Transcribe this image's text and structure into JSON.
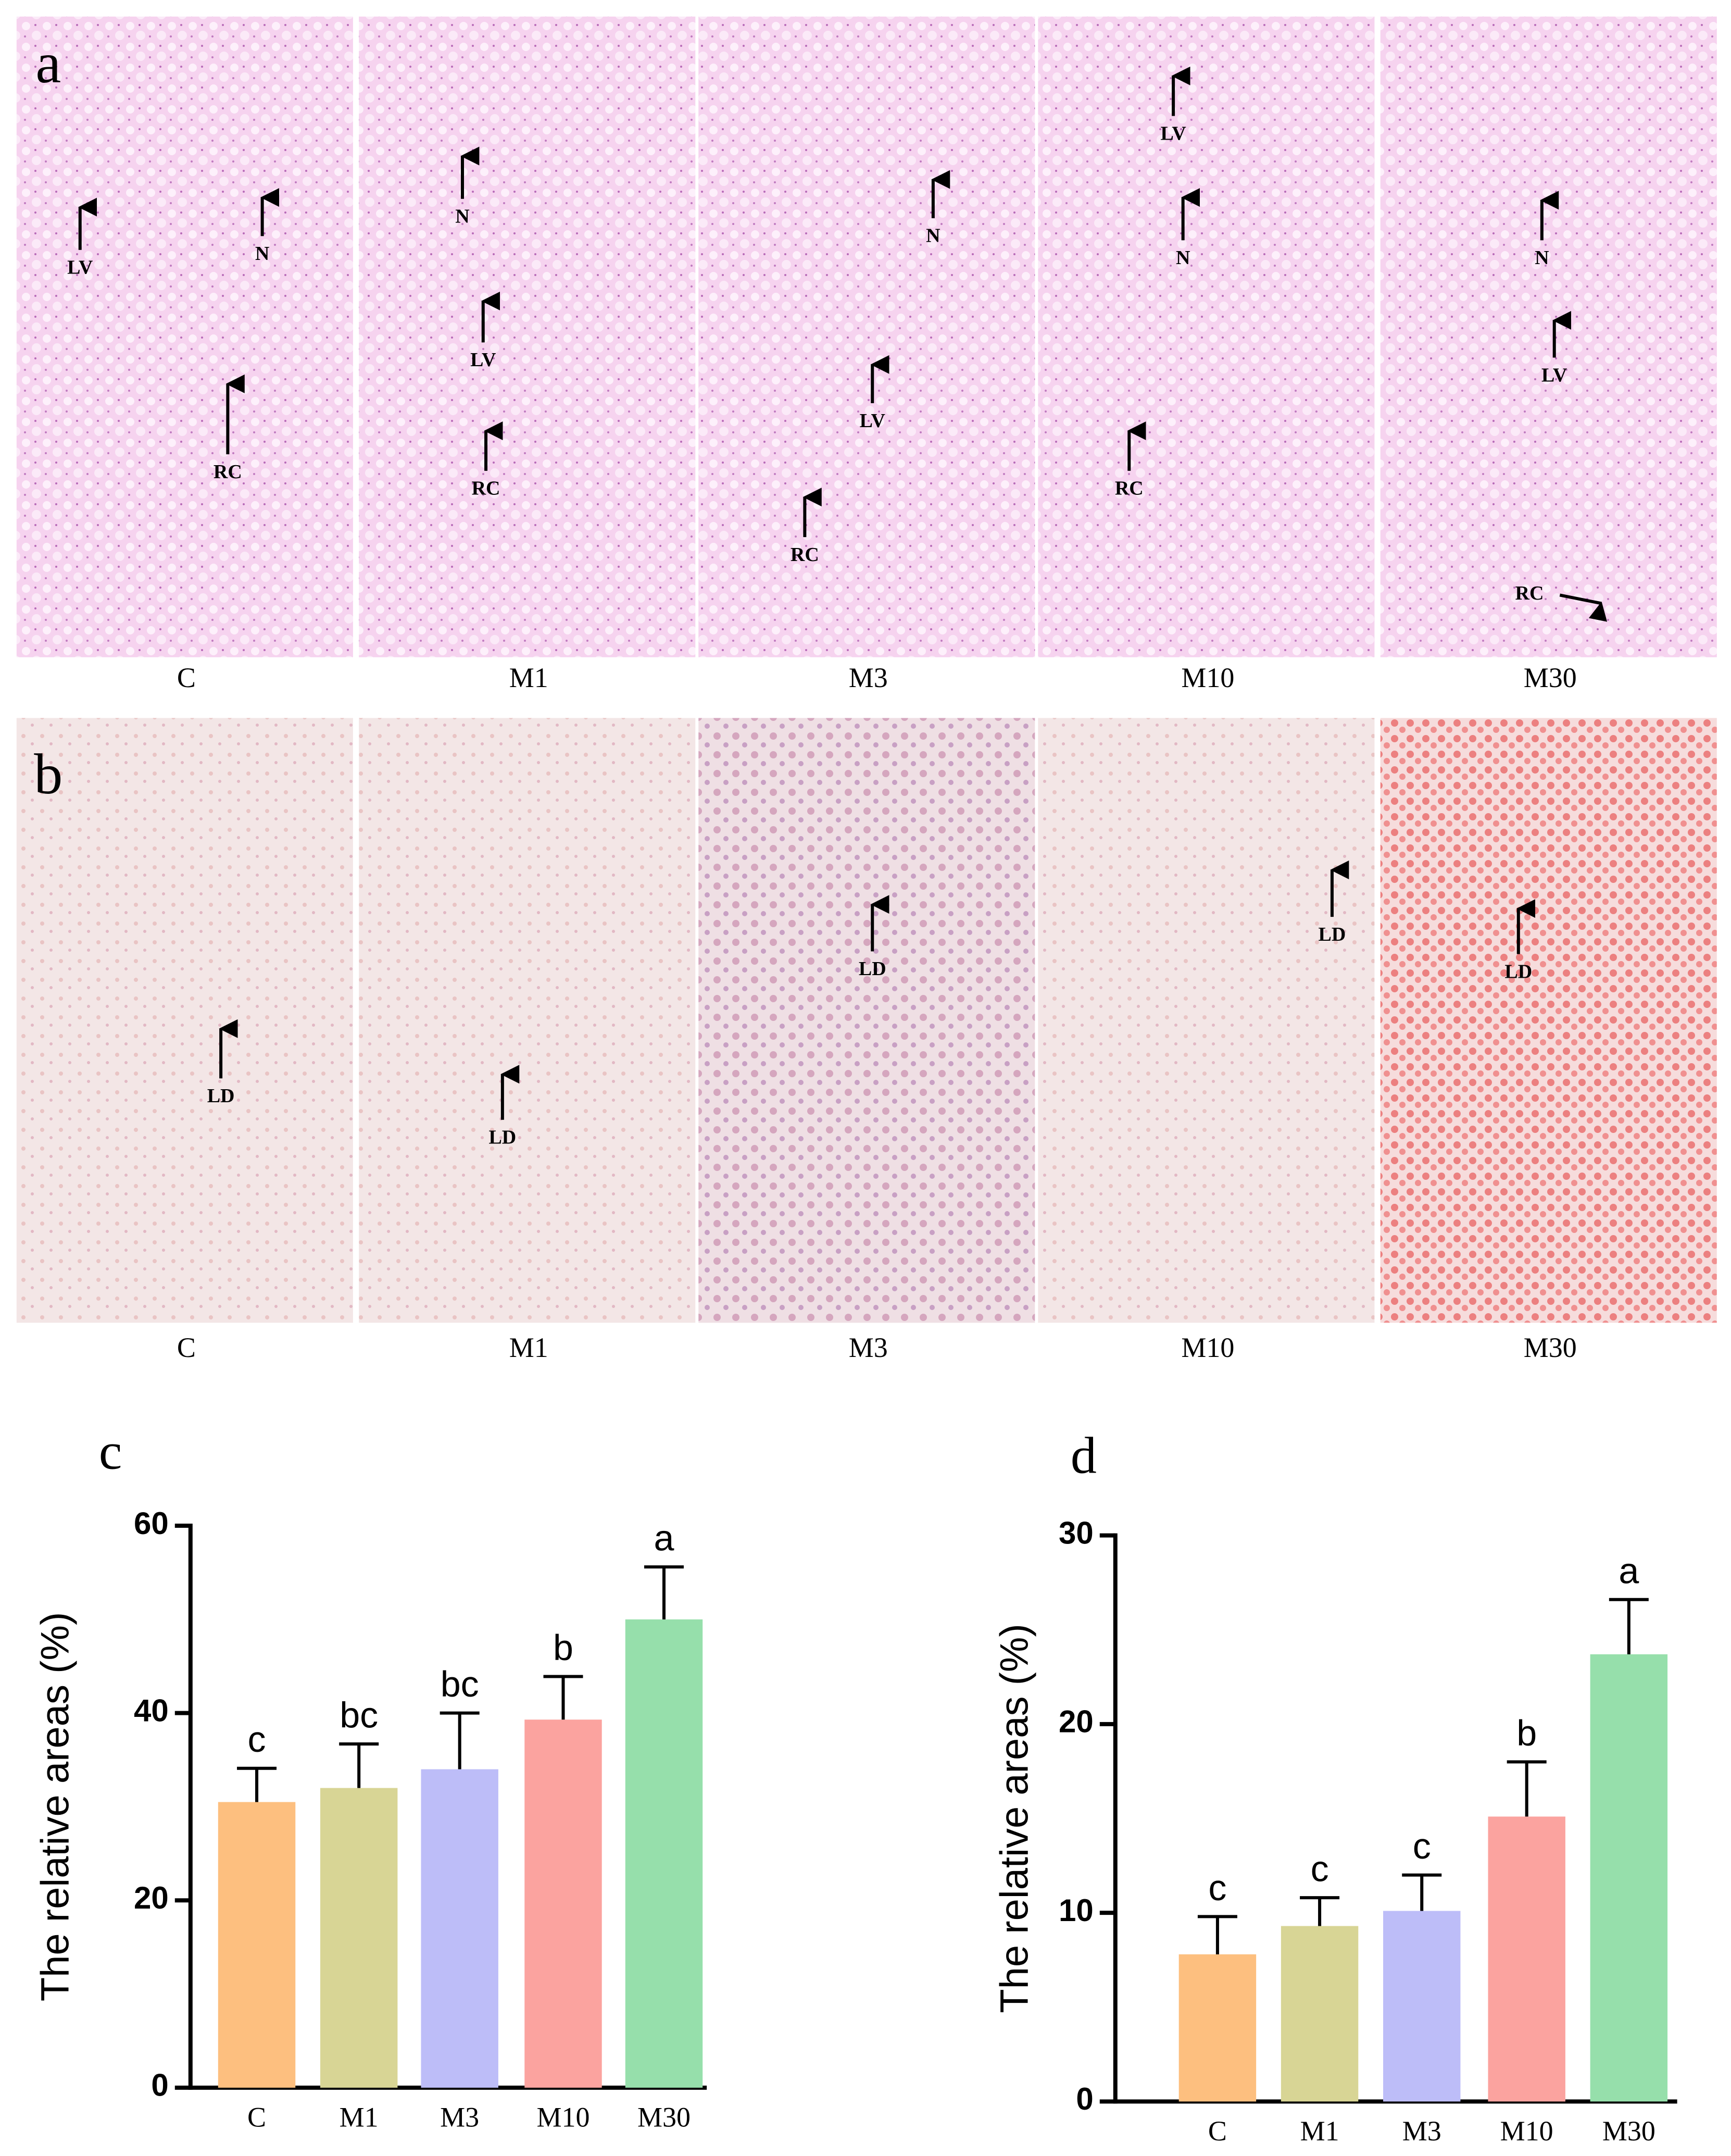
{
  "panel_a": {
    "label": "a",
    "tiles": [
      {
        "caption": "C",
        "markers": [
          "LV",
          "N",
          "RC"
        ]
      },
      {
        "caption": "M1",
        "markers": [
          "N",
          "LV",
          "RC"
        ]
      },
      {
        "caption": "M3",
        "markers": [
          "N",
          "LV",
          "RC"
        ]
      },
      {
        "caption": "M10",
        "markers": [
          "LV",
          "N",
          "RC"
        ]
      },
      {
        "caption": "M30",
        "markers": [
          "N",
          "LV",
          "RC"
        ]
      }
    ]
  },
  "panel_b": {
    "label": "b",
    "tiles": [
      {
        "caption": "C",
        "markers": [
          "LD"
        ]
      },
      {
        "caption": "M1",
        "markers": [
          "LD"
        ]
      },
      {
        "caption": "M3",
        "markers": [
          "LD"
        ]
      },
      {
        "caption": "M10",
        "markers": [
          "LD"
        ]
      },
      {
        "caption": "M30",
        "markers": [
          "LD"
        ]
      }
    ]
  },
  "chart_data": [
    {
      "type": "bar",
      "title": "c",
      "y_label": "The relative areas (%)",
      "categories": [
        "C",
        "M1",
        "M3",
        "M10",
        "M30"
      ],
      "values": [
        30.5,
        32,
        34,
        39.3,
        50
      ],
      "errors": [
        3.6,
        4.7,
        6,
        4.6,
        5.6
      ],
      "annotations": [
        "c",
        "bc",
        "bc",
        "b",
        "a"
      ],
      "colors": [
        "#fdbf7f",
        "#d8d595",
        "#bdbdf8",
        "#fba39f",
        "#96dfab"
      ],
      "ylim": [
        0,
        60
      ],
      "yticks": [
        0,
        20,
        40,
        60
      ]
    },
    {
      "type": "bar",
      "title": "d",
      "y_label": "The relative areas (%)",
      "categories": [
        "C",
        "M1",
        "M3",
        "M10",
        "M30"
      ],
      "values": [
        7.8,
        9.3,
        10.1,
        15.1,
        23.7
      ],
      "errors": [
        2,
        1.5,
        1.9,
        2.9,
        2.9
      ],
      "annotations": [
        "c",
        "c",
        "c",
        "b",
        "a"
      ],
      "colors": [
        "#fdbf7f",
        "#d8d595",
        "#bdbdf8",
        "#fba39f",
        "#96dfab"
      ],
      "ylim": [
        0,
        30
      ],
      "yticks": [
        0,
        10,
        20,
        30
      ]
    }
  ]
}
